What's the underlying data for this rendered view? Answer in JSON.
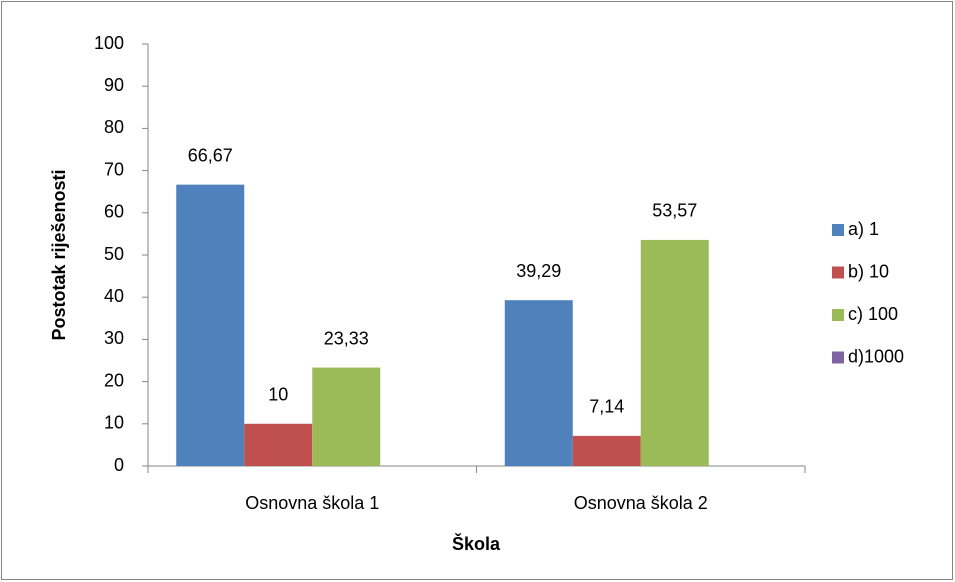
{
  "chart_data": {
    "type": "bar",
    "categories": [
      "Osnovna škola 1",
      "Osnovna škola 2"
    ],
    "x_label": "Škola",
    "y_label": "Postotak riješenosti",
    "series": [
      {
        "name": "a) 1",
        "color": "#4f81bd",
        "values": [
          66.67,
          39.29
        ],
        "value_labels": [
          "66,67",
          "39,29"
        ]
      },
      {
        "name": "b) 10",
        "color": "#c0504d",
        "values": [
          10,
          7.14
        ],
        "value_labels": [
          "10",
          "7,14"
        ]
      },
      {
        "name": "c) 100",
        "color": "#9bbb59",
        "values": [
          23.33,
          53.57
        ],
        "value_labels": [
          "23,33",
          "53,57"
        ]
      },
      {
        "name": "d)1000",
        "color": "#8064a2",
        "values": [
          null,
          null
        ],
        "value_labels": [
          null,
          null
        ]
      }
    ],
    "ylim": [
      0,
      100
    ],
    "yticks": [
      0,
      10,
      20,
      30,
      40,
      50,
      60,
      70,
      80,
      90,
      100
    ],
    "legend": "right"
  }
}
